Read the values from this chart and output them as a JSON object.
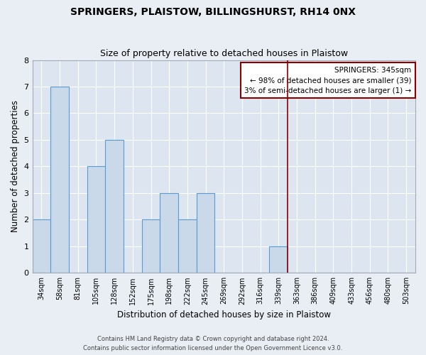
{
  "title": "SPRINGERS, PLAISTOW, BILLINGSHURST, RH14 0NX",
  "subtitle": "Size of property relative to detached houses in Plaistow",
  "xlabel": "Distribution of detached houses by size in Plaistow",
  "ylabel": "Number of detached properties",
  "categories": [
    "34sqm",
    "58sqm",
    "81sqm",
    "105sqm",
    "128sqm",
    "152sqm",
    "175sqm",
    "198sqm",
    "222sqm",
    "245sqm",
    "269sqm",
    "292sqm",
    "316sqm",
    "339sqm",
    "363sqm",
    "386sqm",
    "409sqm",
    "433sqm",
    "456sqm",
    "480sqm",
    "503sqm"
  ],
  "bar_values": [
    2,
    7,
    0,
    4,
    5,
    0,
    2,
    3,
    2,
    3,
    0,
    0,
    0,
    1,
    0,
    0,
    0,
    0,
    0,
    0,
    0
  ],
  "bar_color": "#c9d9ea",
  "bar_edgecolor": "#5b9bd5",
  "background_color": "#e8eef4",
  "plot_bg_color": "#dde6f0",
  "grid_color": "#ffffff",
  "ylim": [
    0,
    8
  ],
  "yticks": [
    0,
    1,
    2,
    3,
    4,
    5,
    6,
    7,
    8
  ],
  "springers_line_index": 13,
  "annotation_text": "SPRINGERS: 345sqm\n← 98% of detached houses are smaller (39)\n3% of semi-detached houses are larger (1) →",
  "footer1": "Contains HM Land Registry data © Crown copyright and database right 2024.",
  "footer2": "Contains public sector information licensed under the Open Government Licence v3.0."
}
